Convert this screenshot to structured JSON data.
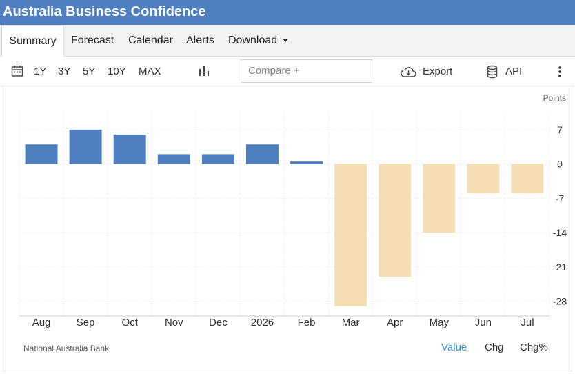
{
  "header": {
    "title": "Australia Business Confidence"
  },
  "tabs": [
    {
      "label": "Summary",
      "active": true
    },
    {
      "label": "Forecast"
    },
    {
      "label": "Calendar"
    },
    {
      "label": "Alerts"
    },
    {
      "label": "Download"
    }
  ],
  "toolbar": {
    "ranges": [
      "1Y",
      "3Y",
      "5Y",
      "10Y",
      "MAX"
    ],
    "compare_placeholder": "Compare +",
    "export_label": "Export",
    "api_label": "API"
  },
  "chart_data": {
    "type": "bar",
    "unit_label": "Points",
    "categories": [
      "Aug",
      "Sep",
      "Oct",
      "Nov",
      "Dec",
      "2026",
      "Feb",
      "Mar",
      "Apr",
      "May",
      "Jun",
      "Jul"
    ],
    "values": [
      4,
      7,
      6,
      2,
      2,
      4,
      0.5,
      -29,
      -23,
      -14,
      -6,
      -6
    ],
    "y_ticks": [
      7,
      0,
      -7,
      -14,
      -21,
      -28
    ],
    "ylim": [
      -31,
      10.5
    ],
    "colors": {
      "positive": "#4f7fbf",
      "negative": "#f5deb3"
    },
    "grid": true
  },
  "footer": {
    "source": "National Australia Bank",
    "modes": [
      "Value",
      "Chg",
      "Chg%"
    ],
    "active_mode": "Value"
  }
}
